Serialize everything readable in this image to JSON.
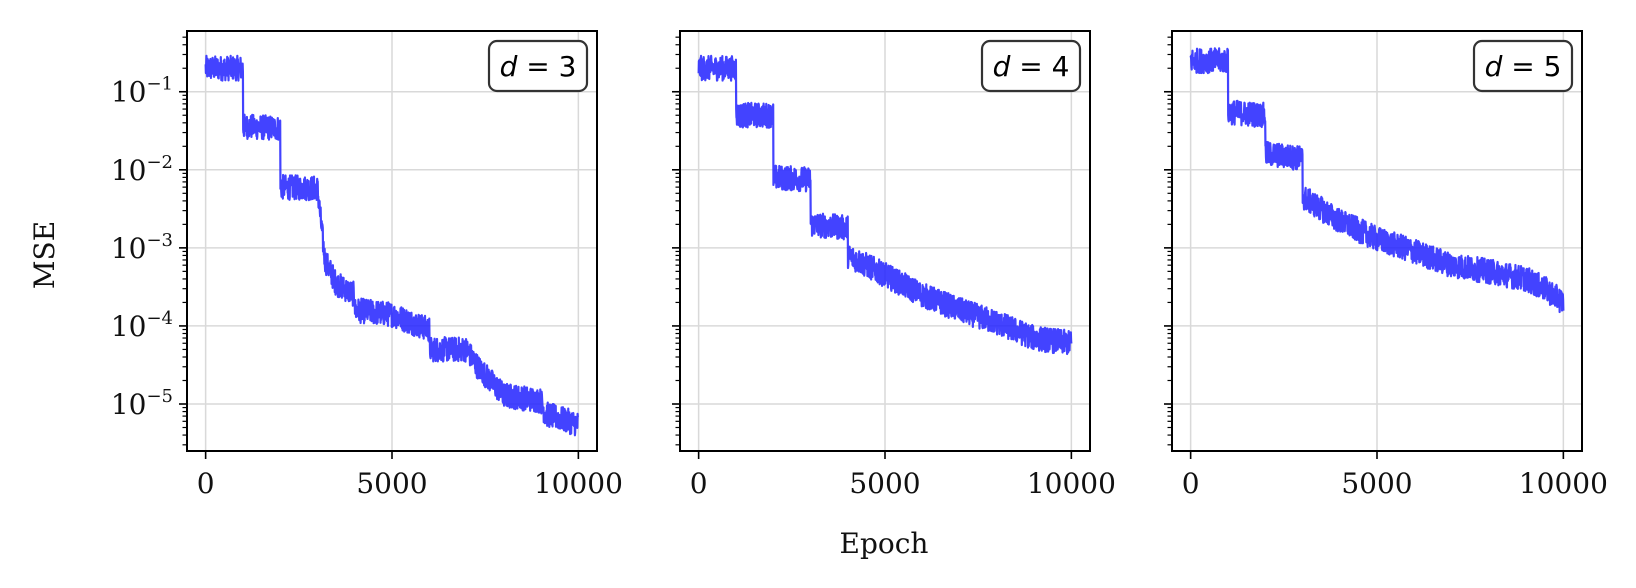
{
  "chart_data": {
    "type": "line",
    "ylabel": "MSE",
    "xlabel": "Epoch",
    "yscale": "log",
    "ylim": [
      2.5e-06,
      0.6
    ],
    "xlim": [
      -500,
      10500
    ],
    "x_ticks": [
      0,
      5000,
      10000
    ],
    "x_tick_labels": [
      "0",
      "5000",
      "10000"
    ],
    "y_ticks": [
      0.1,
      0.01,
      0.001,
      0.0001,
      1e-05
    ],
    "y_tick_labels": [
      {
        "base": "10",
        "exp": "−1"
      },
      {
        "base": "10",
        "exp": "−2"
      },
      {
        "base": "10",
        "exp": "−3"
      },
      {
        "base": "10",
        "exp": "−4"
      },
      {
        "base": "10",
        "exp": "−5"
      }
    ],
    "grid": true,
    "line_color": "#2222ff",
    "panels": [
      {
        "label_var": "d",
        "label_value": "3",
        "points": [
          [
            0,
            0.2
          ],
          [
            1000,
            0.2
          ],
          [
            1000,
            0.036
          ],
          [
            2000,
            0.034
          ],
          [
            2000,
            0.006
          ],
          [
            3000,
            0.0058
          ],
          [
            3200,
            0.0007
          ],
          [
            3500,
            0.00035
          ],
          [
            4000,
            0.00025
          ],
          [
            4000,
            0.00016
          ],
          [
            5000,
            0.00014
          ],
          [
            6000,
            9e-05
          ],
          [
            6000,
            5e-05
          ],
          [
            7000,
            5e-05
          ],
          [
            7300,
            3e-05
          ],
          [
            8000,
            1.3e-05
          ],
          [
            9000,
            1.1e-05
          ],
          [
            9100,
            7.5e-06
          ],
          [
            10000,
            5.5e-06
          ]
        ]
      },
      {
        "label_var": "d",
        "label_value": "4",
        "points": [
          [
            0,
            0.2
          ],
          [
            1000,
            0.2
          ],
          [
            1000,
            0.05
          ],
          [
            2000,
            0.05
          ],
          [
            2000,
            0.008
          ],
          [
            3000,
            0.0075
          ],
          [
            3000,
            0.002
          ],
          [
            4000,
            0.0018
          ],
          [
            4000,
            0.0008
          ],
          [
            5000,
            0.00045
          ],
          [
            6000,
            0.00025
          ],
          [
            7000,
            0.00016
          ],
          [
            8000,
            0.00011
          ],
          [
            9000,
            7e-05
          ],
          [
            10000,
            6e-05
          ]
        ]
      },
      {
        "label_var": "d",
        "label_value": "5",
        "points": [
          [
            0,
            0.25
          ],
          [
            1000,
            0.25
          ],
          [
            1000,
            0.055
          ],
          [
            2000,
            0.05
          ],
          [
            2000,
            0.016
          ],
          [
            3000,
            0.014
          ],
          [
            3000,
            0.0045
          ],
          [
            4000,
            0.0022
          ],
          [
            5000,
            0.0013
          ],
          [
            6000,
            0.0009
          ],
          [
            7000,
            0.0006
          ],
          [
            8000,
            0.0005
          ],
          [
            9000,
            0.0004
          ],
          [
            9500,
            0.0003
          ],
          [
            10000,
            0.0002
          ]
        ]
      }
    ]
  }
}
